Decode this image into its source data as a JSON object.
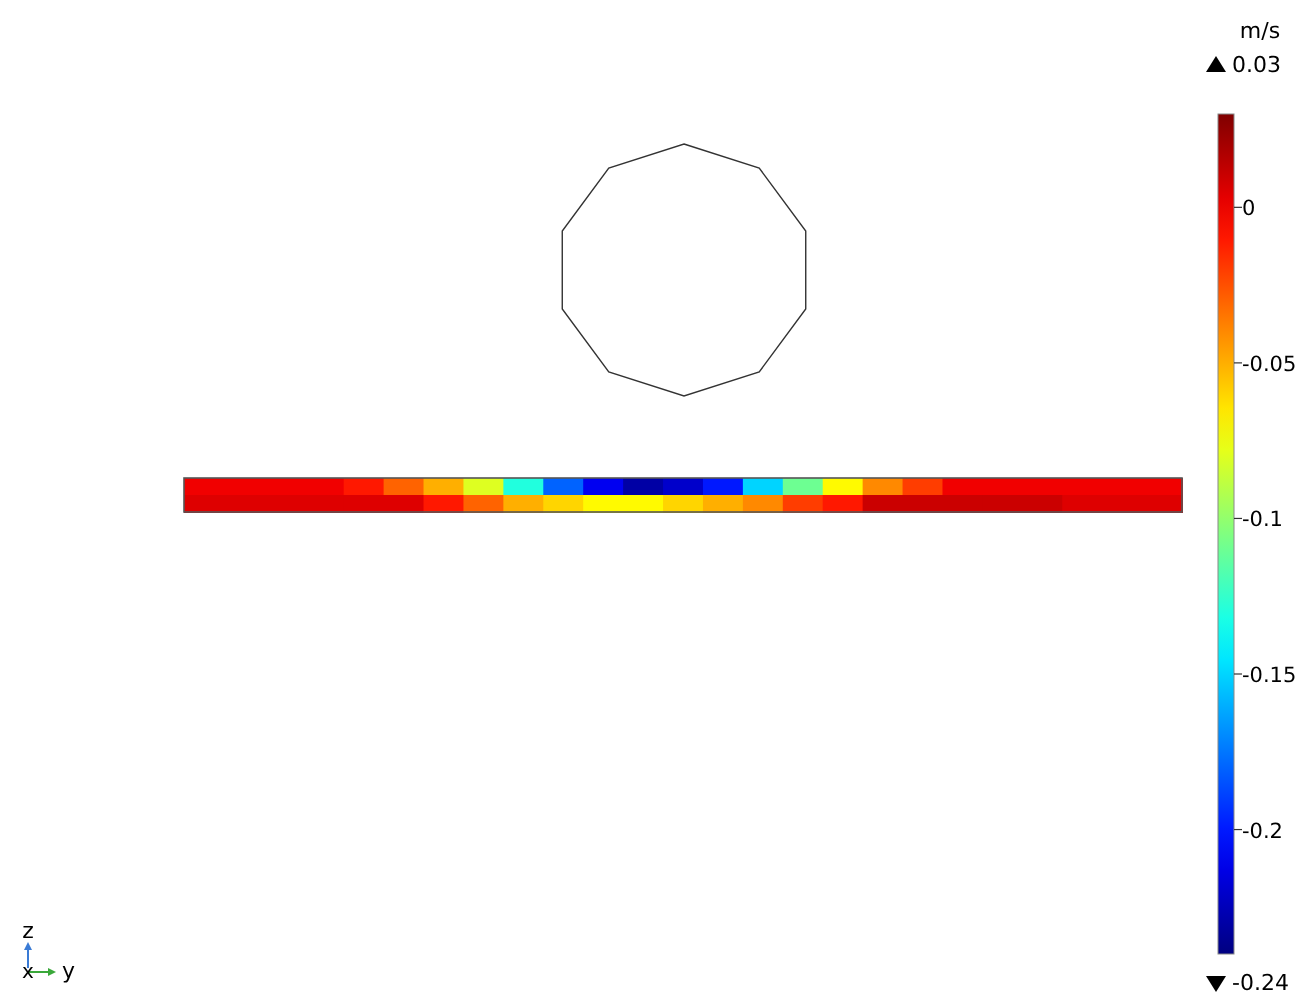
{
  "chart_data": {
    "type": "heatmap",
    "clabel": "m/s",
    "categories": [
      null,
      null,
      null,
      null,
      null,
      null,
      null,
      null,
      null,
      null,
      null,
      null,
      null,
      null,
      null,
      null,
      null,
      null,
      null,
      null,
      null,
      null,
      null,
      null,
      null
    ],
    "y_categories": [
      null,
      null
    ],
    "cells": [
      [
        0,
        0,
        0,
        0,
        -0.01,
        -0.03,
        -0.05,
        -0.08,
        -0.13,
        -0.18,
        -0.21,
        -0.23,
        -0.22,
        -0.2,
        -0.15,
        -0.11,
        -0.07,
        -0.04,
        -0.02,
        0,
        0,
        0,
        0,
        0,
        0
      ],
      [
        0.005,
        0.005,
        0.005,
        0.005,
        0.005,
        0.005,
        -0.01,
        -0.03,
        -0.05,
        -0.06,
        -0.07,
        -0.07,
        -0.06,
        -0.05,
        -0.04,
        -0.02,
        -0.01,
        0.01,
        0.01,
        0.01,
        0.01,
        0.01,
        0.005,
        0.005,
        0.005
      ]
    ],
    "clim": [
      -0.24,
      0.03
    ],
    "cticks": [
      0,
      -0.05,
      -0.1,
      -0.15,
      -0.2
    ],
    "annotations": [
      "z",
      "x",
      "y",
      "0.03",
      "-0.24"
    ]
  }
}
